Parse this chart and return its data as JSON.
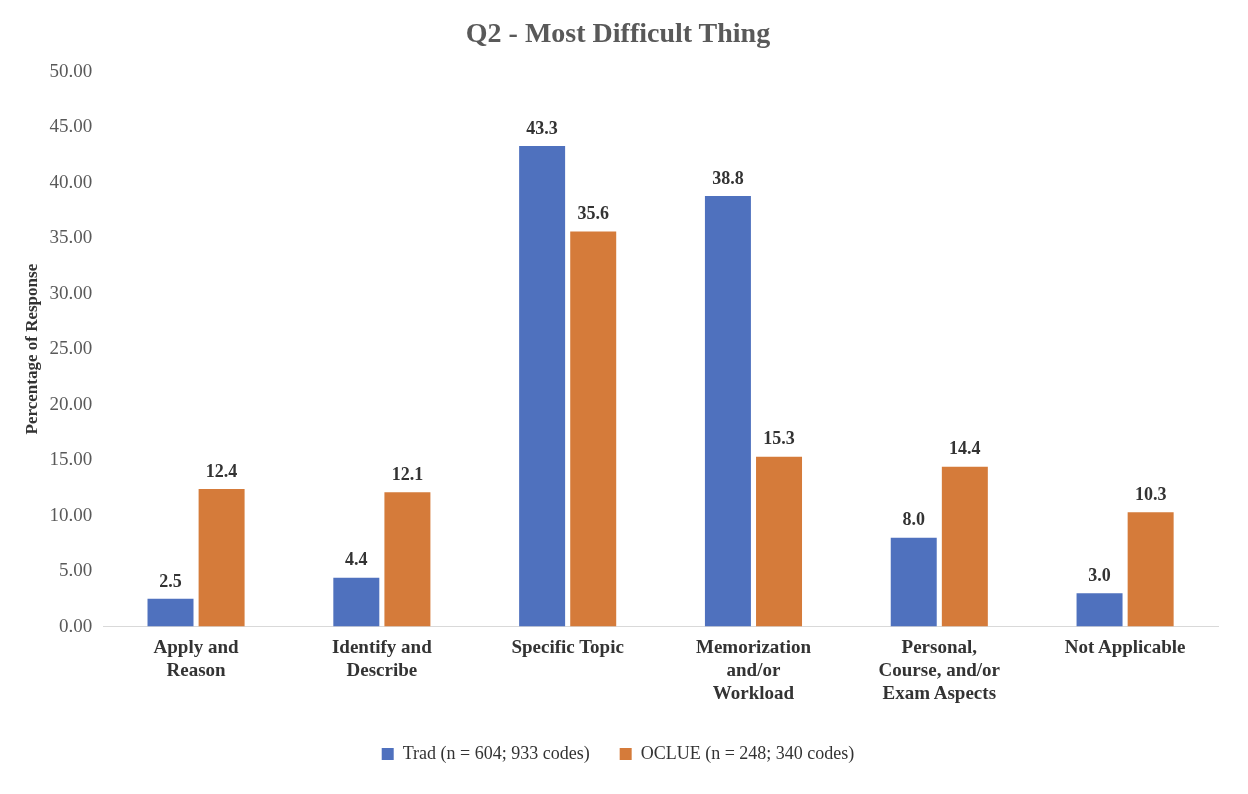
{
  "chart_data": {
    "type": "bar",
    "title": "Q2 - Most Difficult Thing",
    "ylabel": "Percentage of Response",
    "categories": [
      "Apply and Reason",
      "Identify and Describe",
      "Specific Topic",
      "Memorization and/or Workload",
      "Personal, Course, and/or Exam Aspects",
      "Not Applicable"
    ],
    "series": [
      {
        "name": "Trad (n = 604; 933 codes)",
        "color": "#4f71be",
        "values": [
          2.5,
          4.4,
          43.3,
          38.8,
          8.0,
          3.0
        ]
      },
      {
        "name": "OCLUE (n = 248; 340 codes)",
        "color": "#d57b3a",
        "values": [
          12.4,
          12.1,
          35.6,
          15.3,
          14.4,
          10.3
        ]
      }
    ],
    "ylim": [
      0,
      50
    ],
    "yticks": [
      {
        "value": 0,
        "label": "0.00"
      },
      {
        "value": 5,
        "label": "5.00"
      },
      {
        "value": 10,
        "label": "10.00"
      },
      {
        "value": 15,
        "label": "15.00"
      },
      {
        "value": 20,
        "label": "20.00"
      },
      {
        "value": 25,
        "label": "25.00"
      },
      {
        "value": 30,
        "label": "30.00"
      },
      {
        "value": 35,
        "label": "35.00"
      },
      {
        "value": 40,
        "label": "40.00"
      },
      {
        "value": 45,
        "label": "45.00"
      },
      {
        "value": 50,
        "label": "50.00"
      }
    ],
    "value_labels": [
      [
        "2.5",
        "4.4",
        "43.3",
        "38.8",
        "8.0",
        "3.0"
      ],
      [
        "12.4",
        "12.1",
        "35.6",
        "15.3",
        "14.4",
        "10.3"
      ]
    ],
    "grid": false,
    "legend": "bottom"
  }
}
